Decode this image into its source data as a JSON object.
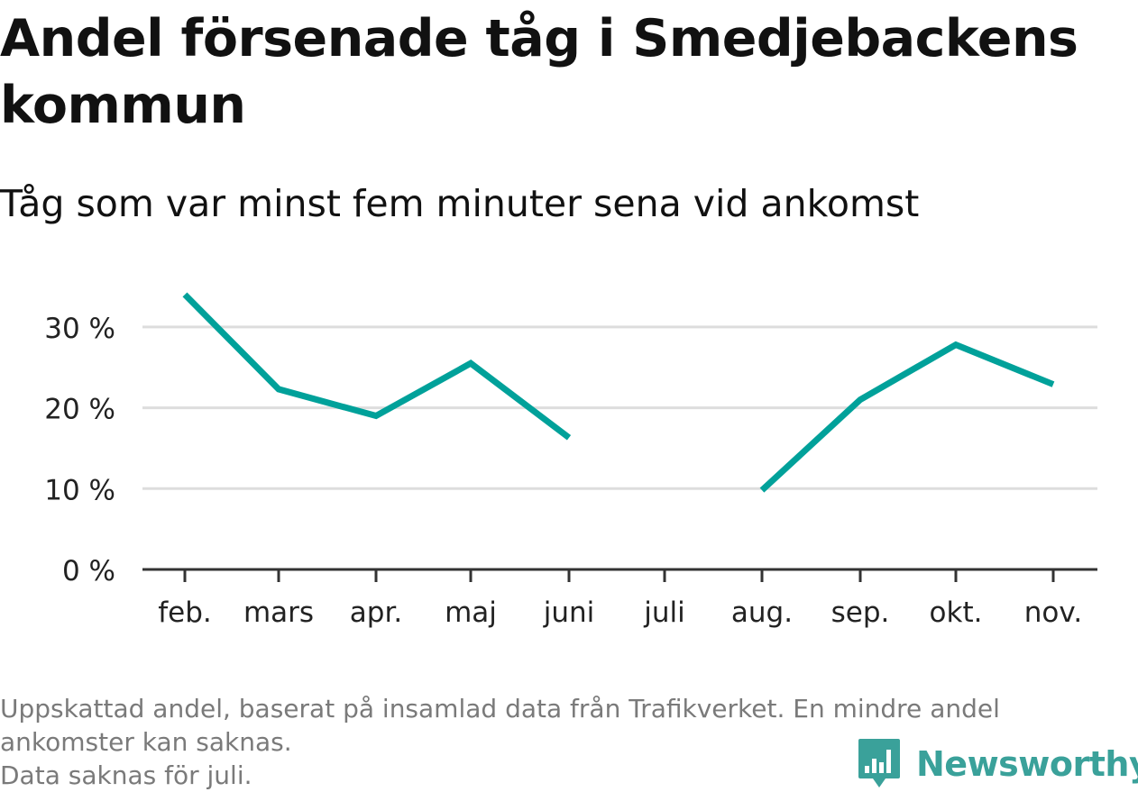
{
  "title": "Andel försenade tåg i Smedjebackens kommun",
  "subtitle": "Tåg som var minst fem minuter sena vid ankomst",
  "chart_data": {
    "type": "line",
    "categories": [
      "feb.",
      "mars",
      "apr.",
      "maj",
      "juni",
      "juli",
      "aug.",
      "sep.",
      "okt.",
      "nov."
    ],
    "series": [
      {
        "values": [
          34,
          22.3,
          19,
          25.5,
          16.3,
          null,
          9.8,
          21,
          27.8,
          22.9
        ]
      }
    ],
    "y_ticks": [
      0,
      10,
      20,
      30
    ],
    "y_tick_labels": [
      "0 %",
      "10 %",
      "20 %",
      "30 %"
    ],
    "ylim": [
      0,
      35
    ],
    "grid": true,
    "line_color": "#00a19a"
  },
  "footer": {
    "line1": "Uppskattad andel, baserat på insamlad data från Trafikverket. En mindre andel",
    "line2": "ankomster kan saknas.",
    "line3": "Data saknas för juli."
  },
  "brand": {
    "name": "Newsworthy",
    "icon": "newsworthy-logo-icon",
    "color": "#3aa19a"
  }
}
